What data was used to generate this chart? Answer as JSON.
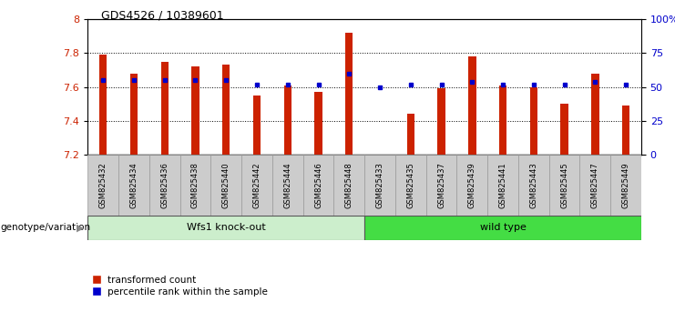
{
  "title": "GDS4526 / 10389601",
  "samples": [
    "GSM825432",
    "GSM825434",
    "GSM825436",
    "GSM825438",
    "GSM825440",
    "GSM825442",
    "GSM825444",
    "GSM825446",
    "GSM825448",
    "GSM825433",
    "GSM825435",
    "GSM825437",
    "GSM825439",
    "GSM825441",
    "GSM825443",
    "GSM825445",
    "GSM825447",
    "GSM825449"
  ],
  "red_values": [
    7.79,
    7.68,
    7.75,
    7.72,
    7.73,
    7.55,
    7.61,
    7.57,
    7.92,
    7.2,
    7.44,
    7.59,
    7.78,
    7.61,
    7.6,
    7.5,
    7.68,
    7.49
  ],
  "blue_pct": [
    55,
    55,
    55,
    55,
    55,
    52,
    52,
    52,
    60,
    50,
    52,
    52,
    54,
    52,
    52,
    52,
    54,
    52
  ],
  "ko_count": 9,
  "wt_count": 9,
  "groups": [
    "Wfs1 knock-out",
    "Wfs1 knock-out",
    "Wfs1 knock-out",
    "Wfs1 knock-out",
    "Wfs1 knock-out",
    "Wfs1 knock-out",
    "Wfs1 knock-out",
    "Wfs1 knock-out",
    "Wfs1 knock-out",
    "wild type",
    "wild type",
    "wild type",
    "wild type",
    "wild type",
    "wild type",
    "wild type",
    "wild type",
    "wild type"
  ],
  "ko_color": "#CCEECC",
  "wt_color": "#44DD44",
  "ymin": 7.2,
  "ymax": 8.0,
  "yticks": [
    7.2,
    7.4,
    7.6,
    7.8,
    8.0
  ],
  "ytick_labels": [
    "7.2",
    "7.4",
    "7.6",
    "7.8",
    "8"
  ],
  "right_yticks": [
    0,
    25,
    50,
    75,
    100
  ],
  "right_ytick_labels": [
    "0",
    "25",
    "50",
    "75",
    "100%"
  ],
  "bar_color": "#CC2200",
  "dot_color": "#0000CC",
  "baseline": 7.2,
  "bar_width": 0.25,
  "legend_labels": [
    "transformed count",
    "percentile rank within the sample"
  ],
  "xlabel_left": "genotype/variation"
}
